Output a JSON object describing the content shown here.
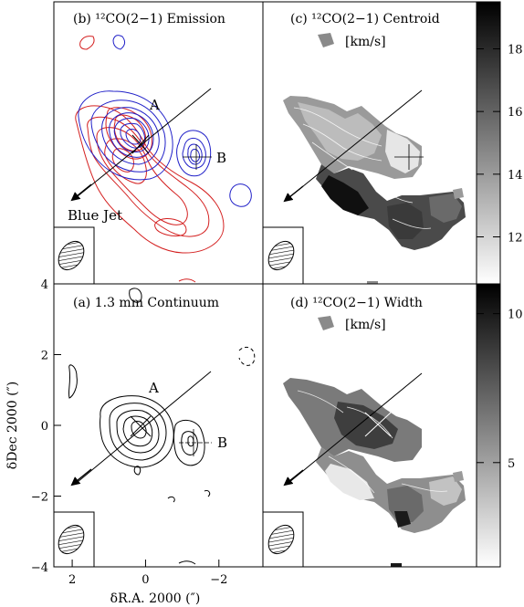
{
  "chart_data": [
    {
      "panel": "b",
      "type": "contour",
      "title": "(b) ¹²CO(2−1) Emission",
      "labels": [
        "A",
        "B",
        "Blue Jet"
      ],
      "series": [
        {
          "color": "#d42020",
          "centers": [
            [
              0.7,
              -0.3
            ],
            [
              0.2,
              -0.1
            ]
          ]
        },
        {
          "color": "#2020c8",
          "centers": [
            [
              0.0,
              0.1
            ],
            [
              -1.4,
              0.0
            ]
          ]
        }
      ]
    },
    {
      "panel": "c",
      "type": "heatmap",
      "title": "(c) ¹²CO(2−1) Centroid",
      "unit_label": "[km/s]",
      "colorbar_ticks": [
        12,
        14,
        16,
        18
      ],
      "colorbar_range": [
        10.5,
        19.5
      ],
      "colormap": "white-to-black"
    },
    {
      "panel": "a",
      "type": "contour",
      "title": "(a) 1.3 mm Continuum",
      "labels": [
        "A",
        "B"
      ],
      "xlabel": "δR.A. 2000 (″)",
      "ylabel": "δDec 2000 (″)",
      "xlim": [
        2.5,
        -3.2
      ],
      "ylim": [
        -4,
        4
      ],
      "xticks": [
        2,
        0,
        -2
      ],
      "yticks": [
        4,
        2,
        0,
        -2,
        -4
      ]
    },
    {
      "panel": "d",
      "type": "heatmap",
      "title": "(d) ¹²CO(2−1) Width",
      "unit_label": "[km/s]",
      "colorbar_ticks": [
        5,
        10
      ],
      "colorbar_range": [
        1.5,
        11
      ],
      "colormap": "white-to-black"
    }
  ]
}
